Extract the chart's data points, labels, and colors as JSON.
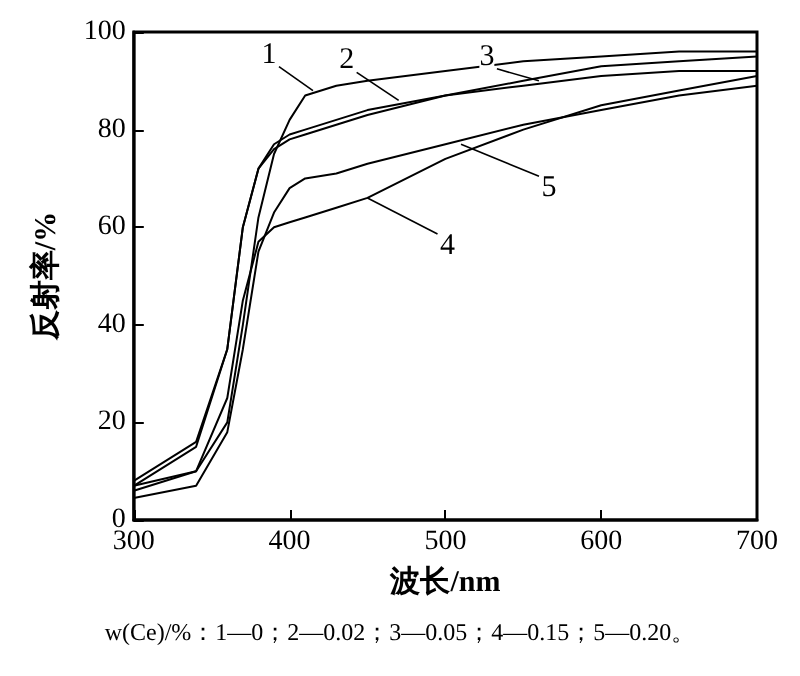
{
  "chart_data": {
    "type": "line",
    "xlabel": "波长/nm",
    "ylabel": "反射率/%",
    "xlim": [
      300,
      700
    ],
    "xticks": [
      300,
      400,
      500,
      600,
      700
    ],
    "ylim": [
      0,
      100
    ],
    "yticks": [
      0,
      20,
      40,
      60,
      80,
      100
    ],
    "grid": false,
    "marker": "none",
    "line_style": "solid",
    "x": [
      300,
      340,
      360,
      370,
      380,
      390,
      400,
      410,
      430,
      450,
      500,
      550,
      600,
      650,
      700
    ],
    "series": [
      {
        "color": "#000000",
        "values": [
          7,
          10,
          20,
          40,
          62,
          75,
          82,
          87,
          89,
          90,
          92,
          94,
          95,
          96,
          96
        ]
      },
      {
        "color": "#000000",
        "values": [
          7,
          15,
          35,
          60,
          72,
          77,
          79,
          80,
          82,
          84,
          87,
          89,
          91,
          92,
          92
        ]
      },
      {
        "color": "#000000",
        "values": [
          8,
          16,
          35,
          60,
          72,
          76,
          78,
          79,
          81,
          83,
          87,
          90,
          93,
          94,
          95
        ]
      },
      {
        "color": "#000000",
        "values": [
          6,
          10,
          25,
          45,
          57,
          60,
          61,
          62,
          64,
          66,
          74,
          80,
          85,
          88,
          91
        ]
      },
      {
        "color": "#000000",
        "values": [
          4.5,
          7,
          18,
          35,
          55,
          63,
          68,
          70,
          71,
          73,
          77,
          81,
          84,
          87,
          89
        ]
      }
    ],
    "annotations": [
      {
        "text": "1",
        "x": 415,
        "y": 88
      },
      {
        "text": "2",
        "x": 470,
        "y": 86
      },
      {
        "text": "3",
        "x": 560,
        "y": 90
      },
      {
        "text": "4",
        "x": 450,
        "y": 66
      },
      {
        "text": "5",
        "x": 510,
        "y": 77
      },
      "w(Ce)/%：1—0；2—0.02；3—0.05；4—0.15；5—0.20。"
    ]
  }
}
